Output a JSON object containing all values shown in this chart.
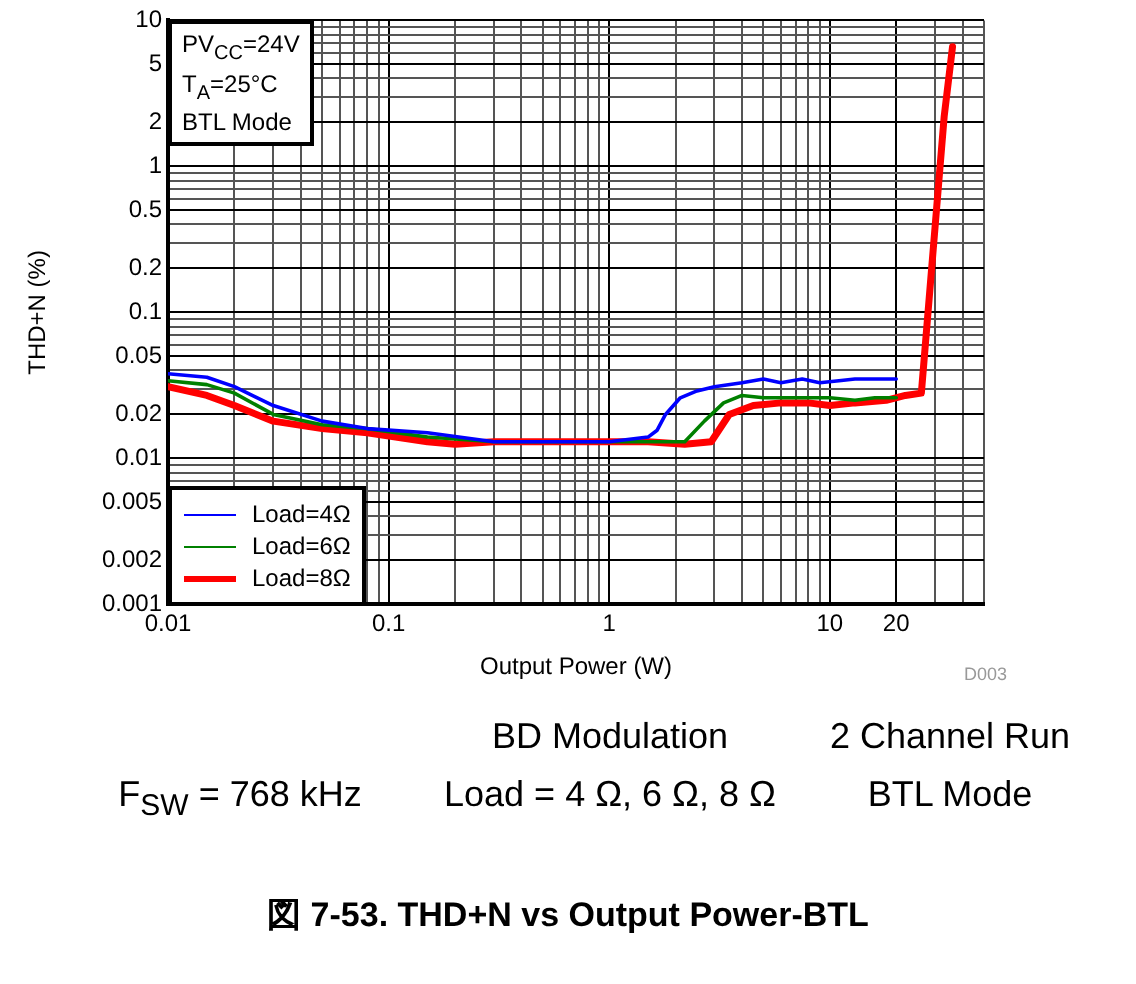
{
  "chart_data": {
    "type": "line",
    "title": "図 7-53. THD+N vs Output Power-BTL",
    "xlabel": "Output Power (W)",
    "ylabel": "THD+N (%)",
    "log": "xy",
    "grid": true,
    "legend": "bottom left",
    "marker": "none",
    "line_style": "solid",
    "xlim": [
      0.01,
      50
    ],
    "ylim": [
      0.001,
      10
    ],
    "xticks": [
      0.01,
      {
        "value": 0.02,
        "label": null
      },
      {
        "value": 0.03,
        "label": null
      },
      {
        "value": 0.04,
        "label": null
      },
      {
        "value": 0.05,
        "label": null
      },
      {
        "value": 0.06,
        "label": null
      },
      {
        "value": 0.07,
        "label": null
      },
      {
        "value": 0.08,
        "label": null
      },
      {
        "value": 0.09,
        "label": null
      },
      0.1,
      {
        "value": 0.2,
        "label": null
      },
      {
        "value": 0.3,
        "label": null
      },
      {
        "value": 0.4,
        "label": null
      },
      {
        "value": 0.5,
        "label": null
      },
      {
        "value": 0.6,
        "label": null
      },
      {
        "value": 0.7,
        "label": null
      },
      {
        "value": 0.8,
        "label": null
      },
      {
        "value": 0.9,
        "label": null
      },
      1,
      {
        "value": 2,
        "label": null
      },
      {
        "value": 3,
        "label": null
      },
      {
        "value": 4,
        "label": null
      },
      {
        "value": 5,
        "label": null
      },
      {
        "value": 6,
        "label": null
      },
      {
        "value": 7,
        "label": null
      },
      {
        "value": 8,
        "label": null
      },
      {
        "value": 9,
        "label": null
      },
      10,
      20,
      {
        "value": 30,
        "label": null
      },
      {
        "value": 40,
        "label": null
      },
      {
        "value": 50,
        "label": null
      }
    ],
    "yticks": [
      0.001,
      0.002,
      {
        "value": 0.003,
        "label": null
      },
      {
        "value": 0.004,
        "label": null
      },
      0.005,
      {
        "value": 0.006,
        "label": null
      },
      {
        "value": 0.007,
        "label": null
      },
      {
        "value": 0.008,
        "label": null
      },
      {
        "value": 0.009,
        "label": null
      },
      0.01,
      0.02,
      {
        "value": 0.03,
        "label": null
      },
      {
        "value": 0.04,
        "label": null
      },
      0.05,
      {
        "value": 0.06,
        "label": null
      },
      {
        "value": 0.07,
        "label": null
      },
      {
        "value": 0.08,
        "label": null
      },
      {
        "value": 0.09,
        "label": null
      },
      0.1,
      0.2,
      {
        "value": 0.3,
        "label": null
      },
      {
        "value": 0.4,
        "label": null
      },
      0.5,
      {
        "value": 0.6,
        "label": null
      },
      {
        "value": 0.7,
        "label": null
      },
      {
        "value": 0.8,
        "label": null
      },
      {
        "value": 0.9,
        "label": null
      },
      1,
      2,
      {
        "value": 3,
        "label": null
      },
      {
        "value": 4,
        "label": null
      },
      5,
      {
        "value": 6,
        "label": null
      },
      {
        "value": 7,
        "label": null
      },
      {
        "value": 8,
        "label": null
      },
      {
        "value": 9,
        "label": null
      },
      10
    ],
    "series": [
      {
        "name": "Load=4Ω",
        "color": "#0000ff",
        "x": [
          0.01,
          0.015,
          0.02,
          0.03,
          0.05,
          0.08,
          0.15,
          0.3,
          0.5,
          1,
          1.5,
          1.65,
          1.8,
          2.1,
          2.5,
          3,
          4,
          5,
          6,
          7.5,
          9,
          11,
          13,
          16,
          20
        ],
        "values": [
          0.038,
          0.036,
          0.031,
          0.023,
          0.018,
          0.016,
          0.015,
          0.013,
          0.013,
          0.013,
          0.014,
          0.0156,
          0.02,
          0.026,
          0.029,
          0.031,
          0.033,
          0.035,
          0.033,
          0.035,
          0.033,
          0.034,
          0.035,
          0.035,
          0.035
        ]
      },
      {
        "name": "Load=6Ω",
        "color": "#008000",
        "x": [
          0.01,
          0.015,
          0.02,
          0.03,
          0.05,
          0.08,
          0.15,
          0.3,
          0.5,
          1,
          1.5,
          2.2,
          2.7,
          3.3,
          4,
          5,
          7,
          10,
          13,
          16,
          20
        ],
        "values": [
          0.034,
          0.032,
          0.028,
          0.02,
          0.017,
          0.016,
          0.014,
          0.013,
          0.013,
          0.013,
          0.013,
          0.013,
          0.018,
          0.024,
          0.027,
          0.026,
          0.026,
          0.026,
          0.025,
          0.026,
          0.026
        ]
      },
      {
        "name": "Load=8Ω",
        "color": "#ff0000",
        "x": [
          0.01,
          0.015,
          0.02,
          0.03,
          0.05,
          0.08,
          0.15,
          0.2,
          0.3,
          0.5,
          1,
          1.5,
          2.2,
          2.9,
          3.5,
          4.5,
          6,
          8,
          10,
          13,
          18,
          22,
          26,
          33,
          36
        ],
        "values": [
          0.031,
          0.027,
          0.023,
          0.018,
          0.016,
          0.015,
          0.013,
          0.0125,
          0.013,
          0.013,
          0.013,
          0.013,
          0.0125,
          0.013,
          0.02,
          0.023,
          0.024,
          0.024,
          0.023,
          0.024,
          0.025,
          0.027,
          0.028,
          2.2,
          6.6
        ]
      }
    ],
    "annotations": [
      "PV$_{CC}$=24V",
      "T$_{A}$=25°C",
      "BTL Mode",
      "D003",
      "BD Modulation",
      "2 Channel Run",
      "F$_{SW}$ = 768 kHz",
      "Load = 4 Ω, 6 Ω, 8 Ω",
      "BTL Mode"
    ]
  }
}
